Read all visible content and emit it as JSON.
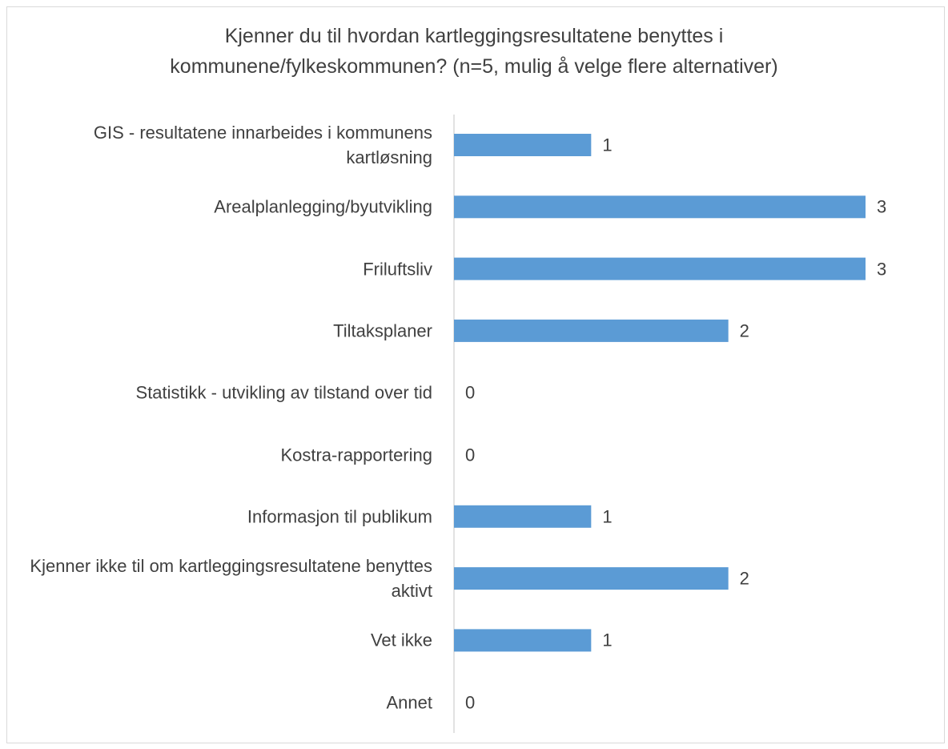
{
  "chart_data": {
    "type": "bar",
    "orientation": "horizontal",
    "title": [
      "Kjenner du til hvordan kartleggingsresultatene benyttes i",
      "kommunene/fylkeskommunen?  (n=5, mulig å velge flere alternativer)"
    ],
    "categories": [
      "GIS - resultatene innarbeides i kommunens kartløsning",
      "Arealplanlegging/byutvikling",
      "Friluftsliv",
      "Tiltaksplaner",
      "Statistikk - utvikling av tilstand over tid",
      "Kostra-rapportering",
      "Informasjon til publikum",
      "Kjenner ikke til om kartleggingsresultatene benyttes aktivt",
      "Vet ikke",
      "Annet"
    ],
    "values": [
      1,
      3,
      3,
      2,
      0,
      0,
      1,
      2,
      1,
      0
    ],
    "color": "#5b9bd5"
  }
}
